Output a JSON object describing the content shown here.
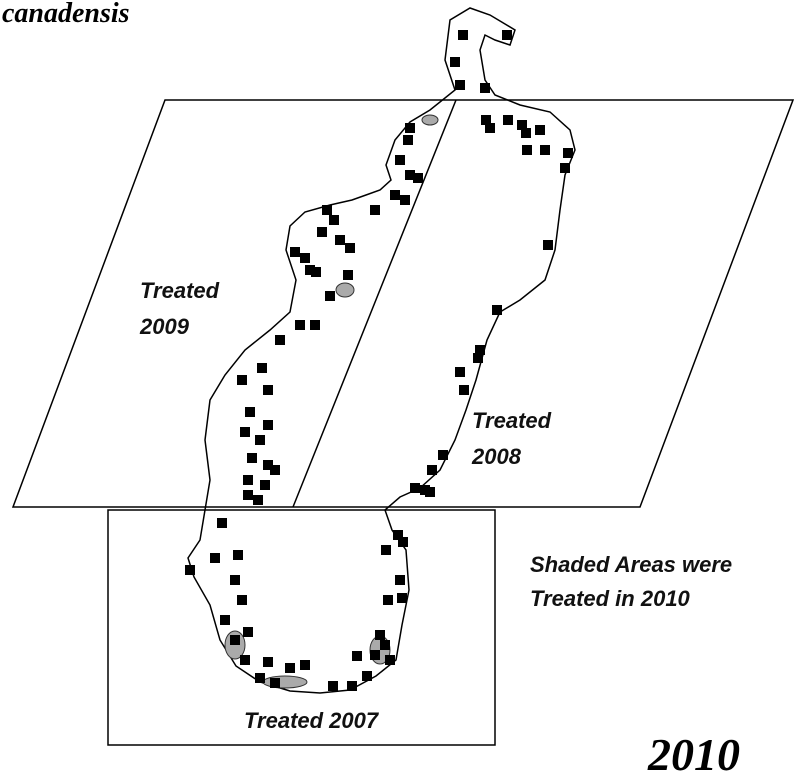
{
  "top_caption": "canadensis",
  "zones": [
    {
      "lines": [
        "Treated",
        "2009"
      ]
    },
    {
      "lines": [
        "Treated",
        "2008"
      ]
    },
    {
      "lines": [
        "Treated 2007"
      ]
    }
  ],
  "legend": {
    "lines": [
      "Shaded Areas were",
      "Treated in 2010"
    ]
  },
  "year": "2010"
}
